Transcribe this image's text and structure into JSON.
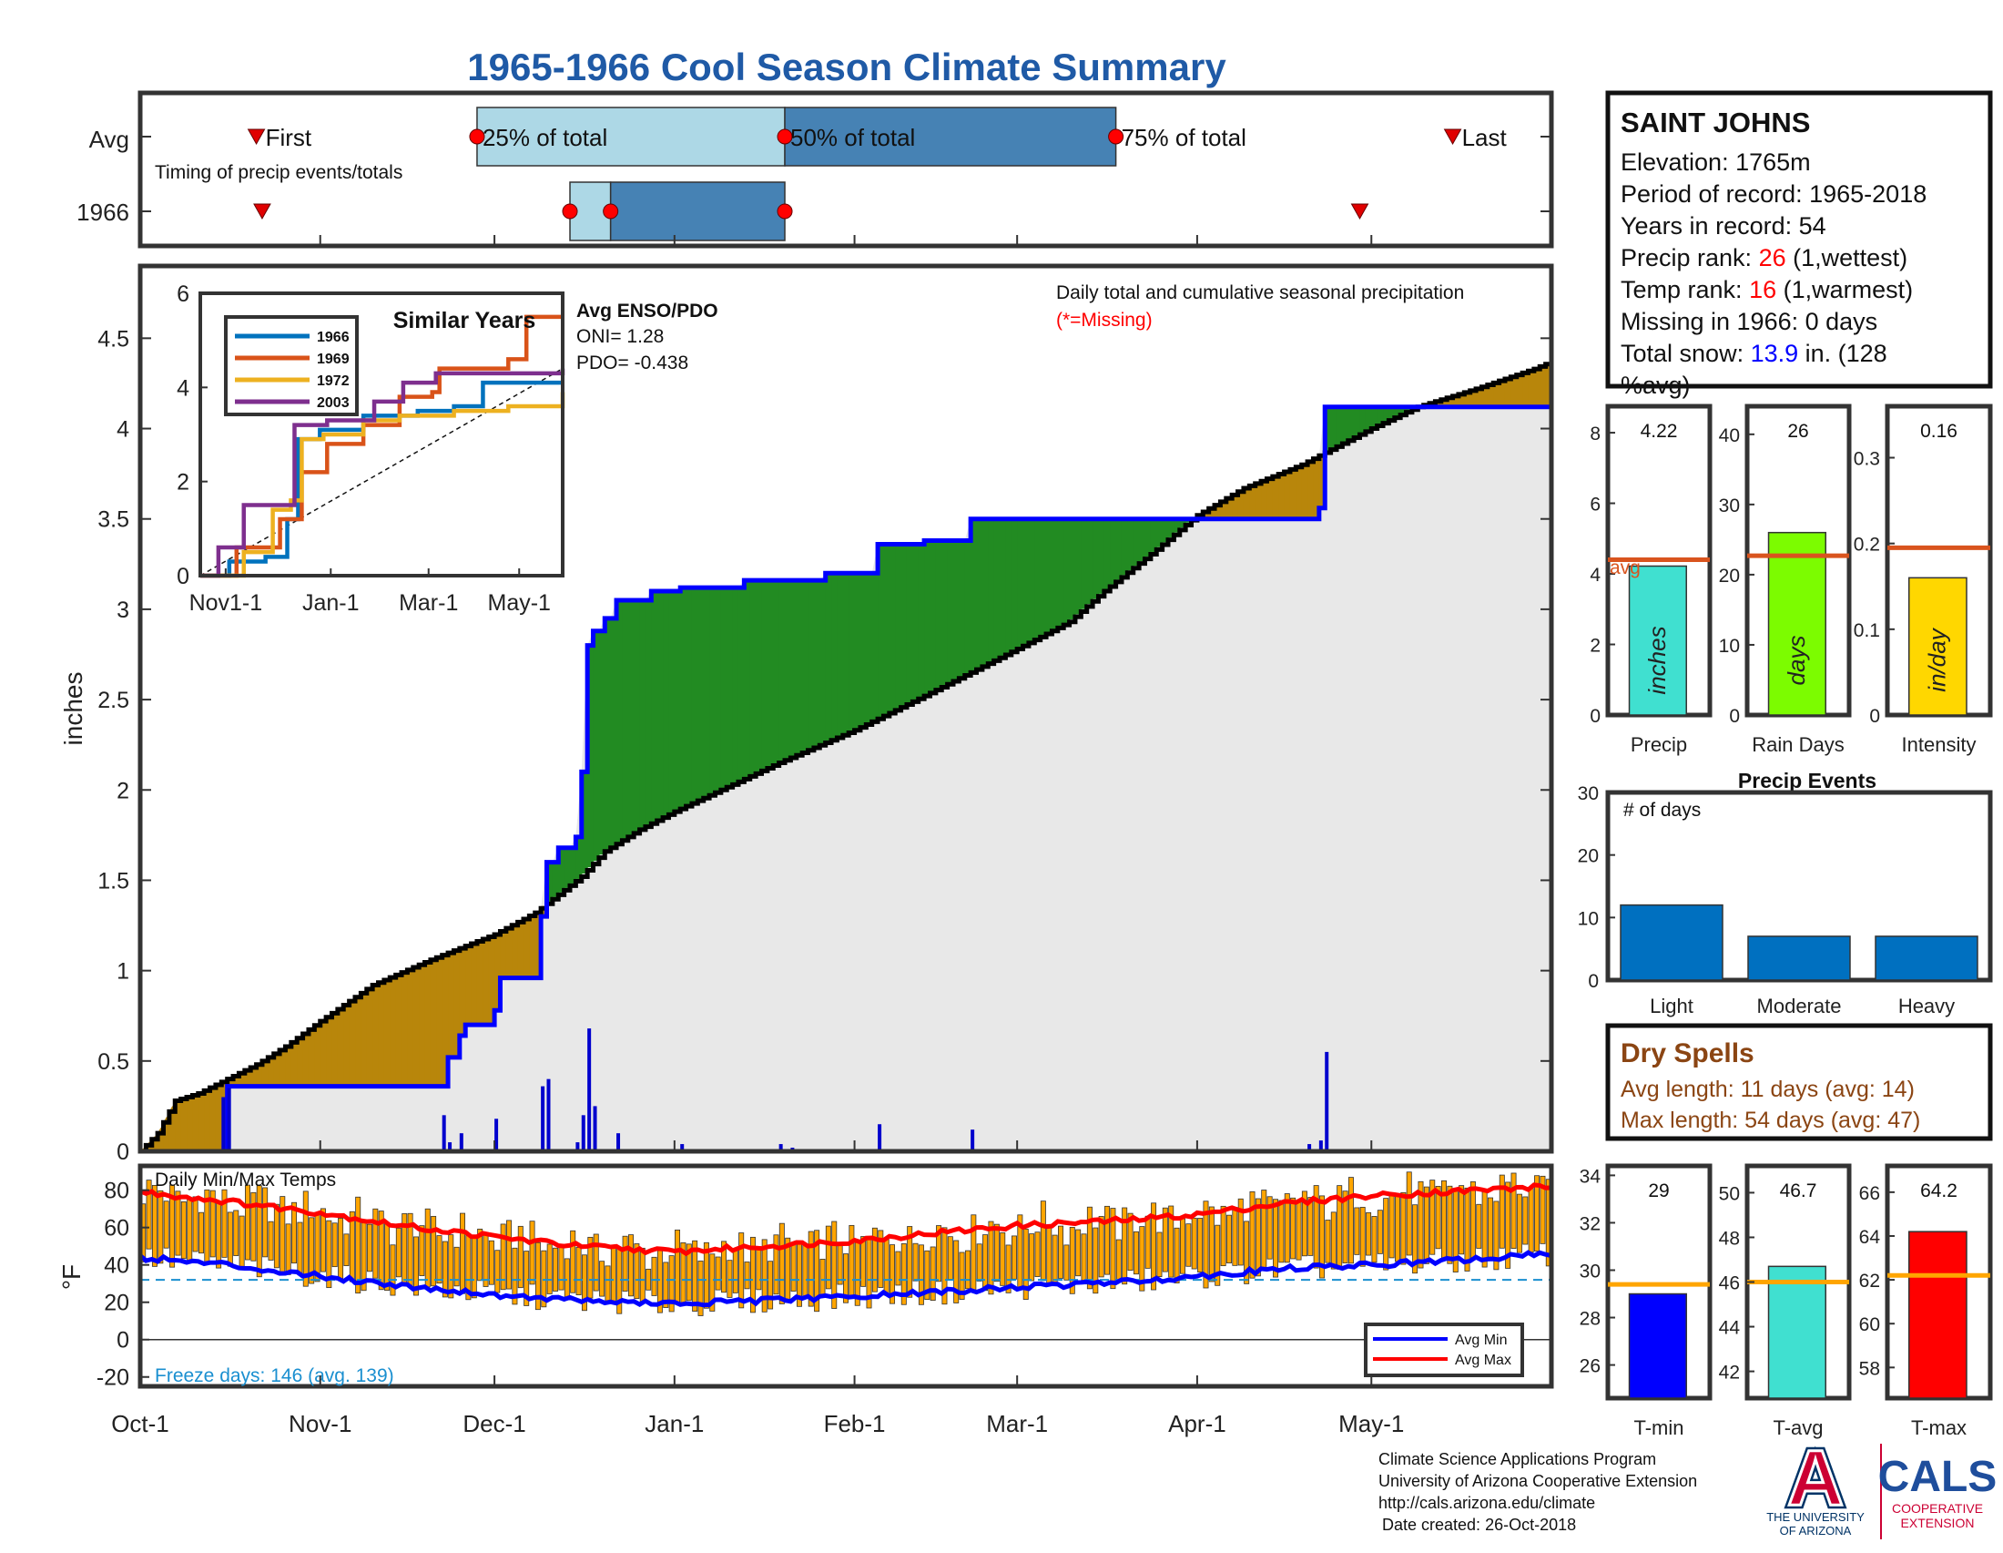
{
  "title": "1965-1966 Cool Season Climate Summary",
  "colors": {
    "title": "#1f5aa6",
    "axis": "#333333",
    "avg_line": "#d9541e",
    "precip_bar": "#40e0d0",
    "raindays_bar": "#7cfc00",
    "intensity_bar": "#ffd700",
    "events_bar": "#0070c0",
    "tmin_bar": "#0000ff",
    "tavg_bar": "#40e0d0",
    "tmax_bar": "#ff0000",
    "temp_ref": "#ffa500",
    "dry_spells": "#8b4513",
    "above_fill": "#228b22",
    "below_fill": "#b8860b",
    "cum_bg": "#e8e8e8",
    "season_line": "#0000ff",
    "avg_cum_line": "#000000",
    "daily_bars": "#0000cd",
    "temp_bars": "#ffa500",
    "avg_min": "#0000ff",
    "avg_max": "#ff0000",
    "freeze_line": "#1a8fd0",
    "red": "#ff0000",
    "blue": "#0000ff",
    "cals": "#1f4e9c",
    "ua_red": "#cc0033",
    "ua_blue": "#003366"
  },
  "timing": {
    "row_labels": [
      "Avg",
      "1966"
    ],
    "subtitle": "Timing of precip events/totals",
    "avg_labels": {
      "first": "First",
      "p25": "25% of total",
      "p50": "50% of total",
      "p75": "75% of total",
      "last": "Last"
    },
    "avg_days": {
      "first": 20,
      "p25": 58,
      "p50": 111,
      "p75": 168,
      "last": 226
    },
    "y1966_days": {
      "first": 21,
      "p25": 74,
      "p50": 81,
      "p75": 111,
      "last": 210
    }
  },
  "info": {
    "station": "SAINT JOHNS",
    "elev_label": "Elevation: ",
    "elev_value": "1765m",
    "period_label": "Period of record: ",
    "period_value": "1965-2018",
    "years_label": "Years in record: ",
    "years_value": "54",
    "precip_rank_label": "Precip rank: ",
    "precip_rank_value": "26",
    "precip_rank_suffix": " (1,wettest)",
    "temp_rank_label": "Temp rank: ",
    "temp_rank_value": "16",
    "temp_rank_suffix": " (1,warmest)",
    "missing_label": "Missing in 1966: ",
    "missing_value": "0 days",
    "snow_label": "Total snow: ",
    "snow_value": "13.9",
    "snow_suffix_1": " in. (128",
    "snow_suffix_2": "%avg)"
  },
  "main_chart": {
    "ylabel": "inches",
    "yticks": [
      "0",
      "0.5",
      "1",
      "1.5",
      "2",
      "2.5",
      "3",
      "3.5",
      "4",
      "4.5"
    ],
    "xticks": [
      "Oct-1",
      "Nov-1",
      "Dec-1",
      "Jan-1",
      "Feb-1",
      "Mar-1",
      "Apr-1",
      "May-1"
    ],
    "legend_title": "Daily total and cumulative seasonal precipitation",
    "legend_missing": "(*=Missing)",
    "enso_title": "Avg ENSO/PDO",
    "enso_oni": "ONI= 1.28",
    "enso_pdo": "PDO= -0.438"
  },
  "inset": {
    "title": "Similar Years",
    "xticks": [
      "Nov1-1",
      "Jan-1",
      "Mar-1",
      "May-1"
    ],
    "yticks": [
      "0",
      "2",
      "4",
      "6"
    ],
    "legend": [
      "1966",
      "1969",
      "1972",
      "2003"
    ],
    "colors": [
      "#0072bd",
      "#d95319",
      "#edb120",
      "#7e2f8e"
    ]
  },
  "bars_panel": {
    "precip": {
      "label": "Precip",
      "value_text": "4.22",
      "unit": "inches",
      "avg_label": "avg",
      "yticks": [
        "0",
        "2",
        "4",
        "6",
        "8"
      ]
    },
    "raindays": {
      "label": "Rain Days",
      "value_text": "26",
      "unit": "days",
      "yticks": [
        "0",
        "10",
        "20",
        "30",
        "40"
      ]
    },
    "intensity": {
      "label": "Intensity",
      "value_text": "0.16",
      "unit": "in/day",
      "yticks": [
        "0",
        "0.1",
        "0.2",
        "0.3"
      ]
    }
  },
  "events": {
    "title": "Precip Events",
    "inner_label": "# of days",
    "yticks": [
      "0",
      "10",
      "20",
      "30"
    ]
  },
  "dry_spells": {
    "title": "Dry Spells",
    "avg_line": "Avg length: 11 days (avg: 14)",
    "max_line": "Max length: 54 days (avg: 47)"
  },
  "temps": {
    "title": "Daily Min/Max Temps",
    "ylabel": "°F",
    "yticks": [
      "-20",
      "0",
      "20",
      "40",
      "60",
      "80"
    ],
    "freeze": "Freeze days: 146 (avg. 139)",
    "legend_min": "Avg Min",
    "legend_max": "Avg Max"
  },
  "temp_bars": {
    "tmin": {
      "label": "T-min",
      "value_text": "29",
      "yticks": [
        "26",
        "28",
        "30",
        "32",
        "34"
      ]
    },
    "tavg": {
      "label": "T-avg",
      "value_text": "46.7",
      "yticks": [
        "42",
        "44",
        "46",
        "48",
        "50"
      ]
    },
    "tmax": {
      "label": "T-max",
      "value_text": "64.2",
      "yticks": [
        "58",
        "60",
        "62",
        "64",
        "66"
      ]
    }
  },
  "footer": {
    "line1": "Climate Science Applications Program",
    "line2": "University of Arizona Cooperative Extension",
    "line3": "http://cals.arizona.edu/climate",
    "line4": "Date created: 26-Oct-2018",
    "ua_line1": "THE UNIVERSITY",
    "ua_line2": "OF ARIZONA",
    "ua_letter": "A",
    "cals": "CALS",
    "cals_line1": "COOPERATIVE",
    "cals_line2": "EXTENSION"
  },
  "chart_data": [
    {
      "type": "area",
      "title": "Daily total and cumulative seasonal precipitation",
      "ylabel": "inches",
      "ylim": [
        0,
        4.9
      ],
      "xlim_days": [
        0,
        243
      ],
      "xticks_days": [
        0,
        31,
        61,
        92,
        123,
        151,
        182,
        212
      ],
      "avg_cumulative": [
        [
          0,
          0
        ],
        [
          3,
          0.1
        ],
        [
          6,
          0.28
        ],
        [
          10,
          0.32
        ],
        [
          15,
          0.4
        ],
        [
          20,
          0.48
        ],
        [
          25,
          0.58
        ],
        [
          31,
          0.72
        ],
        [
          40,
          0.92
        ],
        [
          50,
          1.06
        ],
        [
          61,
          1.2
        ],
        [
          68,
          1.32
        ],
        [
          76,
          1.52
        ],
        [
          80,
          1.66
        ],
        [
          86,
          1.78
        ],
        [
          92,
          1.88
        ],
        [
          100,
          2.0
        ],
        [
          110,
          2.15
        ],
        [
          123,
          2.33
        ],
        [
          135,
          2.52
        ],
        [
          151,
          2.78
        ],
        [
          160,
          2.93
        ],
        [
          166,
          3.1
        ],
        [
          175,
          3.33
        ],
        [
          182,
          3.52
        ],
        [
          190,
          3.67
        ],
        [
          200,
          3.8
        ],
        [
          212,
          4.0
        ],
        [
          220,
          4.12
        ],
        [
          230,
          4.22
        ],
        [
          240,
          4.33
        ],
        [
          243,
          4.37
        ]
      ],
      "season_1966_cumulative": [
        [
          0,
          0
        ],
        [
          14,
          0
        ],
        [
          15,
          0.36
        ],
        [
          52,
          0.36
        ],
        [
          53,
          0.52
        ],
        [
          55,
          0.64
        ],
        [
          56,
          0.7
        ],
        [
          61,
          0.78
        ],
        [
          62,
          0.96
        ],
        [
          68,
          0.96
        ],
        [
          69,
          1.3
        ],
        [
          70,
          1.6
        ],
        [
          72,
          1.68
        ],
        [
          75,
          1.74
        ],
        [
          76,
          2.1
        ],
        [
          77,
          2.8
        ],
        [
          78,
          2.88
        ],
        [
          80,
          2.95
        ],
        [
          82,
          3.05
        ],
        [
          88,
          3.1
        ],
        [
          93,
          3.12
        ],
        [
          104,
          3.16
        ],
        [
          118,
          3.2
        ],
        [
          127,
          3.36
        ],
        [
          135,
          3.38
        ],
        [
          143,
          3.5
        ],
        [
          200,
          3.5
        ],
        [
          203,
          3.56
        ],
        [
          204,
          4.12
        ],
        [
          243,
          4.12
        ]
      ],
      "daily_totals": [
        [
          14,
          0.3
        ],
        [
          15,
          0.35
        ],
        [
          52,
          0.2
        ],
        [
          53,
          0.05
        ],
        [
          55,
          0.1
        ],
        [
          61,
          0.18
        ],
        [
          69,
          0.36
        ],
        [
          70,
          0.4
        ],
        [
          75,
          0.05
        ],
        [
          76,
          0.2
        ],
        [
          77,
          0.68
        ],
        [
          78,
          0.25
        ],
        [
          82,
          0.1
        ],
        [
          93,
          0.04
        ],
        [
          110,
          0.04
        ],
        [
          112,
          0.02
        ],
        [
          127,
          0.15
        ],
        [
          143,
          0.12
        ],
        [
          201,
          0.04
        ],
        [
          203,
          0.06
        ],
        [
          204,
          0.55
        ]
      ]
    },
    {
      "type": "line",
      "title": "Similar Years",
      "x": [
        "Nov1-1",
        "Jan-1",
        "Mar-1",
        "May-1"
      ],
      "ylim": [
        0,
        6
      ],
      "series": [
        {
          "name": "1966",
          "values": [
            [
              0,
              0
            ],
            [
              8,
              0.3
            ],
            [
              18,
              0.4
            ],
            [
              24,
              1.2
            ],
            [
              27,
              2.9
            ],
            [
              33,
              3.1
            ],
            [
              45,
              3.4
            ],
            [
              60,
              3.5
            ],
            [
              70,
              3.6
            ],
            [
              78,
              4.1
            ],
            [
              82,
              4.1
            ],
            [
              88,
              4.1
            ],
            [
              100,
              4.1
            ]
          ]
        },
        {
          "name": "1969",
          "values": [
            [
              0,
              0
            ],
            [
              10,
              0.6
            ],
            [
              22,
              1.2
            ],
            [
              28,
              2.2
            ],
            [
              35,
              2.8
            ],
            [
              45,
              3.2
            ],
            [
              55,
              3.8
            ],
            [
              64,
              3.9
            ],
            [
              66,
              4.4
            ],
            [
              85,
              4.6
            ],
            [
              90,
              5.5
            ],
            [
              100,
              5.5
            ]
          ]
        },
        {
          "name": "1972",
          "values": [
            [
              0,
              0
            ],
            [
              12,
              0.5
            ],
            [
              20,
              1.4
            ],
            [
              25,
              1.6
            ],
            [
              28,
              2.9
            ],
            [
              34,
              3.0
            ],
            [
              45,
              3.3
            ],
            [
              55,
              3.4
            ],
            [
              70,
              3.5
            ],
            [
              85,
              3.6
            ],
            [
              95,
              3.6
            ],
            [
              100,
              3.9
            ]
          ]
        },
        {
          "name": "2003",
          "values": [
            [
              0,
              0
            ],
            [
              5,
              0.6
            ],
            [
              12,
              1.5
            ],
            [
              20,
              1.5
            ],
            [
              26,
              3.2
            ],
            [
              35,
              3.3
            ],
            [
              48,
              3.7
            ],
            [
              56,
              4.1
            ],
            [
              65,
              4.3
            ],
            [
              80,
              4.3
            ],
            [
              100,
              4.4
            ]
          ]
        }
      ]
    },
    {
      "type": "bar",
      "categories": [
        "Precip",
        "Rain Days",
        "Intensity"
      ],
      "values": [
        4.22,
        26,
        0.16
      ],
      "averages": [
        4.4,
        22.7,
        0.195
      ]
    },
    {
      "type": "bar",
      "title": "Precip Events",
      "categories": [
        "Light",
        "Moderate",
        "Heavy"
      ],
      "values": [
        12,
        7,
        7
      ],
      "ylim": [
        0,
        30
      ]
    },
    {
      "type": "bar",
      "categories": [
        "T-min",
        "T-avg",
        "T-max"
      ],
      "values": [
        29,
        46.7,
        64.2
      ],
      "averages": [
        29.4,
        46.0,
        62.2
      ]
    },
    {
      "type": "line",
      "title": "Daily Min/Max Temps",
      "ylabel": "°F",
      "ylim": [
        -25,
        93
      ],
      "freeze_line": 32,
      "series": [
        {
          "name": "Avg Max",
          "values": [
            [
              0,
              79
            ],
            [
              15,
              74
            ],
            [
              31,
              68
            ],
            [
              45,
              61
            ],
            [
              61,
              55
            ],
            [
              76,
              50
            ],
            [
              92,
              47
            ],
            [
              108,
              50
            ],
            [
              123,
              53
            ],
            [
              140,
              58
            ],
            [
              151,
              61
            ],
            [
              170,
              64
            ],
            [
              182,
              67
            ],
            [
              197,
              73
            ],
            [
              212,
              77
            ],
            [
              230,
              80
            ],
            [
              243,
              82
            ]
          ]
        },
        {
          "name": "Avg Min",
          "values": [
            [
              0,
              44
            ],
            [
              15,
              40
            ],
            [
              31,
              34
            ],
            [
              45,
              29
            ],
            [
              61,
              24
            ],
            [
              76,
              21
            ],
            [
              92,
              19
            ],
            [
              108,
              21
            ],
            [
              123,
              23
            ],
            [
              140,
              26
            ],
            [
              151,
              28
            ],
            [
              170,
              31
            ],
            [
              182,
              34
            ],
            [
              197,
              38
            ],
            [
              212,
              40
            ],
            [
              230,
              43
            ],
            [
              243,
              46
            ]
          ]
        }
      ]
    }
  ]
}
